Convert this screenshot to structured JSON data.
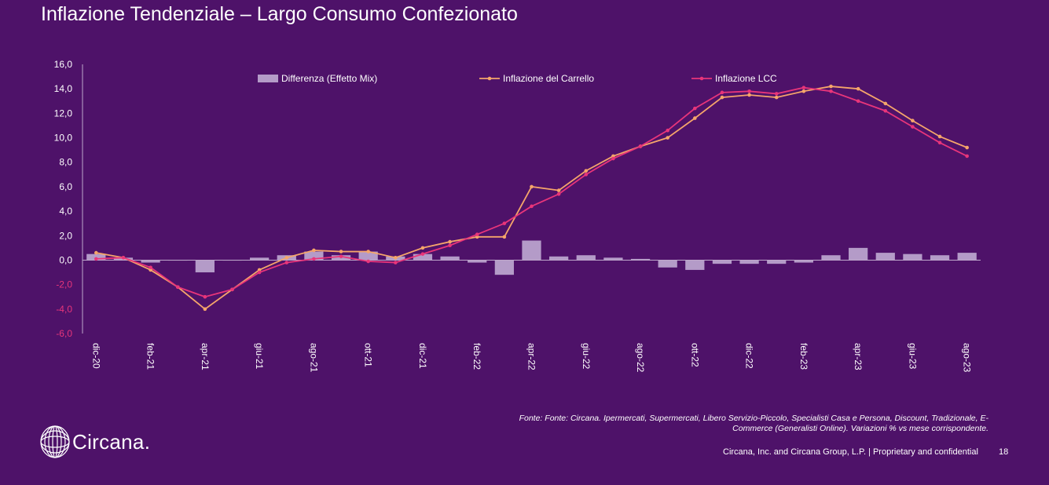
{
  "title": "Inflazione Tendenziale – Largo Consumo Confezionato",
  "footnote": "Fonte: Fonte: Circana. Ipermercati, Supermercati, Libero Servizio-Piccolo,  Specialisti Casa e Persona, Discount, Tradizionale, E-Commerce (Generalisti Online). Variazioni % vs mese corrispondente.",
  "footer": "Circana, Inc. and Circana Group, L.P. |  Proprietary and confidential",
  "page_number": "18",
  "logo": {
    "text": "Circana."
  },
  "colors": {
    "background": "#4e1269",
    "bars": "#b49bc8",
    "carrello": "#f5a56a",
    "lcc": "#e8357a",
    "axis": "#bfa8cc",
    "negative_tick": "#e8357a"
  },
  "chart_data": {
    "type": "bar+line",
    "ylim": [
      -6,
      16
    ],
    "yticks": [
      "16,0",
      "14,0",
      "12,0",
      "10,0",
      "8,0",
      "6,0",
      "4,0",
      "2,0",
      "0,0",
      "-2,0",
      "-4,0",
      "-6,0"
    ],
    "ytick_values": [
      16,
      14,
      12,
      10,
      8,
      6,
      4,
      2,
      0,
      -2,
      -4,
      -6
    ],
    "categories": [
      "dic-20",
      "gen-21",
      "feb-21",
      "mar-21",
      "apr-21",
      "mag-21",
      "giu-21",
      "lug-21",
      "ago-21",
      "set-21",
      "ott-21",
      "nov-21",
      "dic-21",
      "gen-22",
      "feb-22",
      "mar-22",
      "apr-22",
      "mag-22",
      "giu-22",
      "lug-22",
      "ago-22",
      "set-22",
      "ott-22",
      "nov-22",
      "dic-22",
      "gen-23",
      "feb-23",
      "mar-23",
      "apr-23",
      "mag-23",
      "giu-23",
      "lug-23",
      "ago-23"
    ],
    "xtick_labels": [
      "dic-20",
      "feb-21",
      "apr-21",
      "giu-21",
      "ago-21",
      "ott-21",
      "dic-21",
      "feb-22",
      "apr-22",
      "giu-22",
      "ago-22",
      "ott-22",
      "dic-22",
      "feb-23",
      "apr-23",
      "giu-23",
      "ago-23"
    ],
    "legend": [
      "Differenza (Effetto Mix)",
      "Inflazione del Carrello",
      "Inflazione LCC"
    ],
    "legend_placement": "top",
    "grid": false,
    "series": [
      {
        "name": "Differenza (Effetto Mix)",
        "type": "bar",
        "values": [
          0.5,
          0.2,
          -0.2,
          0.0,
          -1.0,
          0.0,
          0.2,
          0.4,
          0.7,
          0.4,
          0.7,
          0.3,
          0.5,
          0.3,
          -0.2,
          -1.2,
          1.6,
          0.3,
          0.4,
          0.2,
          0.1,
          -0.6,
          -0.8,
          -0.3,
          -0.3,
          -0.3,
          -0.2,
          0.4,
          1.0,
          0.6,
          0.5,
          0.4,
          0.6
        ]
      },
      {
        "name": "Inflazione del Carrello",
        "type": "line",
        "values": [
          0.6,
          0.2,
          -0.8,
          -2.2,
          -4.0,
          -2.4,
          -0.8,
          0.2,
          0.8,
          0.7,
          0.7,
          0.2,
          1.0,
          1.5,
          1.9,
          1.9,
          6.0,
          5.7,
          7.3,
          8.5,
          9.3,
          10.0,
          11.6,
          13.3,
          13.5,
          13.3,
          13.8,
          14.2,
          14.0,
          12.8,
          11.4,
          10.1,
          9.2
        ]
      },
      {
        "name": "Inflazione LCC",
        "type": "line",
        "values": [
          0.1,
          0.2,
          -0.6,
          -2.2,
          -3.0,
          -2.4,
          -1.0,
          -0.2,
          0.1,
          0.3,
          -0.1,
          -0.2,
          0.5,
          1.2,
          2.1,
          3.0,
          4.4,
          5.4,
          7.0,
          8.3,
          9.3,
          10.6,
          12.4,
          13.7,
          13.8,
          13.6,
          14.1,
          13.8,
          13.0,
          12.2,
          10.9,
          9.6,
          8.5
        ]
      }
    ]
  }
}
